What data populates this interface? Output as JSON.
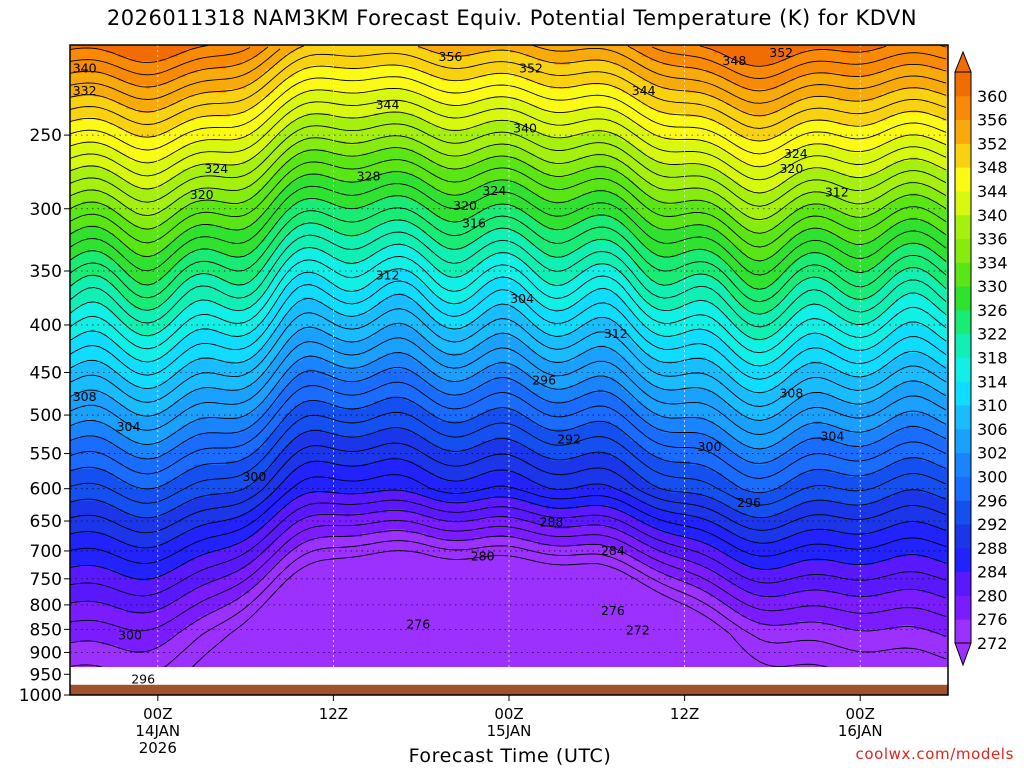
{
  "chart_data": {
    "type": "heatmap",
    "title": "2026011318 NAM3KM Forecast Equiv. Potential Temperature (K) for KDVN",
    "xlabel": "Forecast Time (UTC)",
    "ylabel": "",
    "units": "K",
    "y_scale": "log",
    "y_inverted": true,
    "ylim": [
      1000,
      200
    ],
    "y_ticks": [
      250,
      300,
      350,
      400,
      450,
      500,
      550,
      600,
      650,
      700,
      750,
      800,
      850,
      900,
      950,
      1000
    ],
    "x_range_hours": [
      0,
      60
    ],
    "x_ticks": [
      {
        "hour": 6,
        "labels": [
          "00Z",
          "14JAN",
          "2026"
        ]
      },
      {
        "hour": 18,
        "labels": [
          "12Z"
        ]
      },
      {
        "hour": 30,
        "labels": [
          "00Z",
          "15JAN"
        ]
      },
      {
        "hour": 42,
        "labels": [
          "12Z"
        ]
      },
      {
        "hour": 54,
        "labels": [
          "00Z",
          "16JAN"
        ]
      }
    ],
    "grid": true,
    "colorbar": {
      "position": "right",
      "levels": [
        272,
        276,
        280,
        284,
        288,
        292,
        296,
        300,
        302,
        306,
        310,
        314,
        318,
        322,
        326,
        330,
        334,
        336,
        340,
        344,
        348,
        352,
        356,
        360
      ],
      "colors": [
        "#9b30ff",
        "#7a1cff",
        "#5a18ff",
        "#2222ff",
        "#1a36e8",
        "#1450f0",
        "#1a6cff",
        "#1a84ff",
        "#1aa0ff",
        "#18bcff",
        "#10dcff",
        "#10f0e6",
        "#10f0b4",
        "#18ec74",
        "#30e230",
        "#5ae614",
        "#86ec10",
        "#a6f010",
        "#d8f810",
        "#fafa14",
        "#f8d210",
        "#f8aa0a",
        "#f88a06",
        "#f26c04"
      ]
    },
    "contour_labels": [
      {
        "value": 340,
        "hour": 1.0,
        "p": 212
      },
      {
        "value": 332,
        "hour": 1.0,
        "p": 224
      },
      {
        "value": 356,
        "hour": 26.0,
        "p": 206
      },
      {
        "value": 352,
        "hour": 31.5,
        "p": 212
      },
      {
        "value": 352,
        "hour": 48.6,
        "p": 204
      },
      {
        "value": 348,
        "hour": 45.4,
        "p": 208
      },
      {
        "value": 344,
        "hour": 21.7,
        "p": 232
      },
      {
        "value": 344,
        "hour": 39.2,
        "p": 224
      },
      {
        "value": 340,
        "hour": 31.1,
        "p": 246
      },
      {
        "value": 324,
        "hour": 10.0,
        "p": 272
      },
      {
        "value": 328,
        "hour": 20.4,
        "p": 277
      },
      {
        "value": 320,
        "hour": 9.0,
        "p": 290
      },
      {
        "value": 324,
        "hour": 29.0,
        "p": 287
      },
      {
        "value": 324,
        "hour": 49.6,
        "p": 262
      },
      {
        "value": 320,
        "hour": 49.3,
        "p": 272
      },
      {
        "value": 312,
        "hour": 52.4,
        "p": 288
      },
      {
        "value": 320,
        "hour": 27.0,
        "p": 298
      },
      {
        "value": 316,
        "hour": 27.6,
        "p": 311
      },
      {
        "value": 312,
        "hour": 21.7,
        "p": 354
      },
      {
        "value": 304,
        "hour": 30.9,
        "p": 375
      },
      {
        "value": 312,
        "hour": 37.3,
        "p": 409
      },
      {
        "value": 308,
        "hour": 1.0,
        "p": 478
      },
      {
        "value": 296,
        "hour": 32.4,
        "p": 459
      },
      {
        "value": 308,
        "hour": 49.3,
        "p": 474
      },
      {
        "value": 304,
        "hour": 4.0,
        "p": 515
      },
      {
        "value": 292,
        "hour": 34.1,
        "p": 531
      },
      {
        "value": 300,
        "hour": 43.7,
        "p": 541
      },
      {
        "value": 304,
        "hour": 52.1,
        "p": 527
      },
      {
        "value": 300,
        "hour": 12.6,
        "p": 583
      },
      {
        "value": 296,
        "hour": 46.4,
        "p": 622
      },
      {
        "value": 288,
        "hour": 32.9,
        "p": 652
      },
      {
        "value": 284,
        "hour": 37.1,
        "p": 700
      },
      {
        "value": 280,
        "hour": 28.2,
        "p": 710
      },
      {
        "value": 276,
        "hour": 37.1,
        "p": 812
      },
      {
        "value": 276,
        "hour": 23.8,
        "p": 840
      },
      {
        "value": 272,
        "hour": 38.8,
        "p": 852
      },
      {
        "value": 300,
        "hour": 4.1,
        "p": 863
      },
      {
        "value": 296,
        "hour": 5.0,
        "p": 962
      }
    ],
    "ground_level_hpa": 975
  },
  "footer": {
    "credit": "coolwx.com/models"
  },
  "colors": {
    "ground": "#a0522d"
  }
}
